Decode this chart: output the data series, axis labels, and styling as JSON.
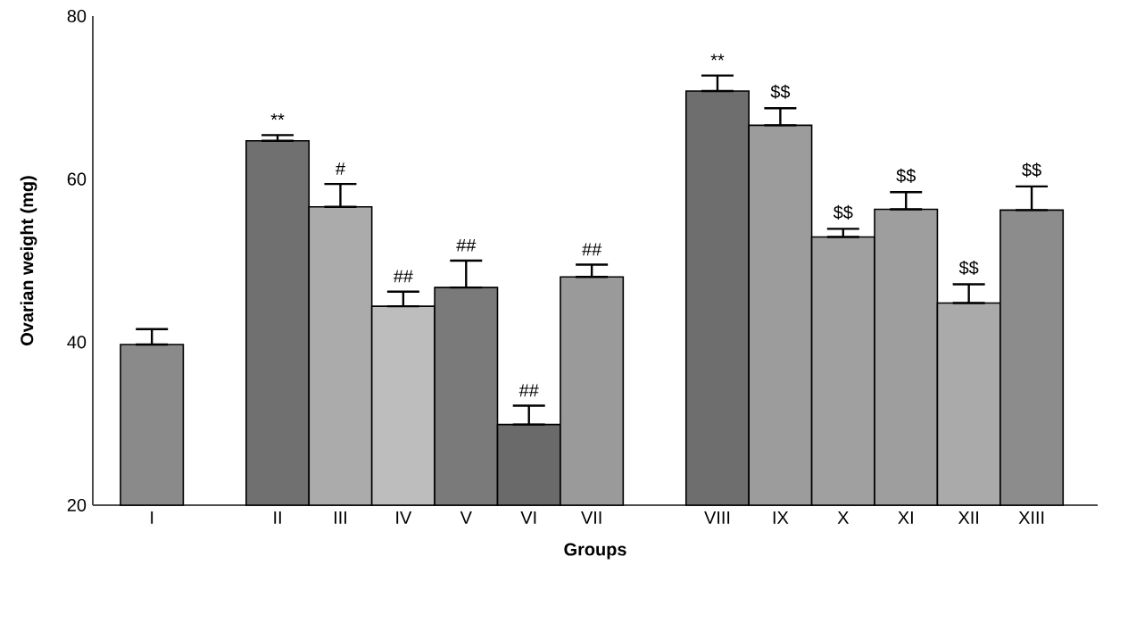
{
  "chart_data": {
    "type": "bar",
    "xlabel": "Groups",
    "ylabel": "Ovarian weight (mg)",
    "categories": [
      "I",
      null,
      "II",
      "III",
      "IV",
      "V",
      "VI",
      "VII",
      null,
      "VIII",
      "IX",
      "X",
      "XI",
      "XII",
      "XIII"
    ],
    "values": [
      39.7,
      null,
      64.7,
      56.6,
      44.4,
      46.7,
      29.9,
      48.0,
      null,
      70.8,
      66.6,
      52.9,
      56.3,
      44.8,
      56.2
    ],
    "errors": [
      [
        39.7,
        41.6
      ],
      null,
      [
        64.7,
        65.4
      ],
      [
        56.6,
        59.4
      ],
      [
        44.4,
        46.2
      ],
      [
        46.7,
        50.0
      ],
      [
        29.9,
        32.2
      ],
      [
        48.0,
        49.5
      ],
      null,
      [
        70.8,
        72.7
      ],
      [
        66.6,
        68.7
      ],
      [
        52.9,
        53.9
      ],
      [
        56.3,
        58.4
      ],
      [
        44.8,
        47.1
      ],
      [
        56.2,
        59.1
      ]
    ],
    "colors": [
      "#8a8a8a",
      null,
      "#707070",
      "#ababab",
      "#bdbdbd",
      "#7a7a7a",
      "#6a6a6a",
      "#9a9a9a",
      null,
      "#6e6e6e",
      "#9c9c9c",
      "#a0a0a0",
      "#9e9e9e",
      "#aaaaaa",
      "#8c8c8c"
    ],
    "ylim": [
      20,
      80
    ],
    "yticks": [
      20,
      40,
      60,
      80
    ],
    "annotations": [
      {
        "text": "**",
        "x": "II",
        "y": 65.4
      },
      {
        "text": "#",
        "x": "III",
        "y": 59.4
      },
      {
        "text": "##",
        "x": "IV",
        "y": 46.2
      },
      {
        "text": "##",
        "x": "V",
        "y": 50.0
      },
      {
        "text": "##",
        "x": "VI",
        "y": 32.2
      },
      {
        "text": "##",
        "x": "VII",
        "y": 49.5
      },
      {
        "text": "**",
        "x": "VIII",
        "y": 72.7
      },
      {
        "text": "$$",
        "x": "IX",
        "y": 68.7
      },
      {
        "text": "$$",
        "x": "X",
        "y": 53.9
      },
      {
        "text": "$$",
        "x": "XI",
        "y": 58.4
      },
      {
        "text": "$$",
        "x": "XII",
        "y": 47.1
      },
      {
        "text": "$$",
        "x": "XIII",
        "y": 59.1
      }
    ]
  }
}
